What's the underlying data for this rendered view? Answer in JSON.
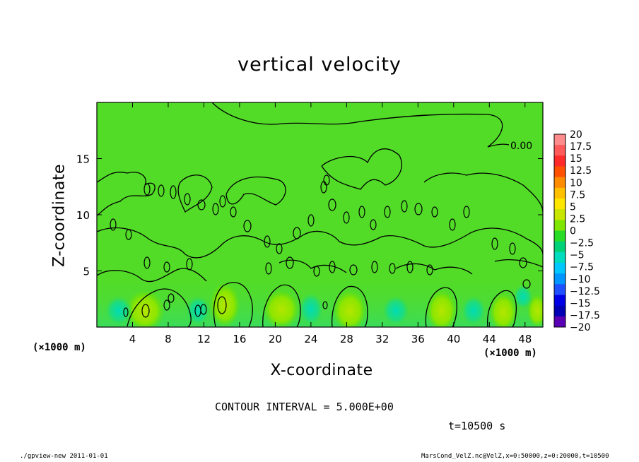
{
  "chart_data": {
    "type": "heatmap",
    "title": "vertical velocity",
    "xlabel": "X-coordinate",
    "ylabel": "Z-coordinate",
    "x_unit_left": "(×1000 m)",
    "x_unit_right": "(×1000 m)",
    "xlim": [
      0,
      50
    ],
    "ylim": [
      0,
      20
    ],
    "x_ticks": [
      "4",
      "8",
      "12",
      "16",
      "20",
      "24",
      "28",
      "32",
      "36",
      "40",
      "44",
      "48"
    ],
    "x_tick_values": [
      4,
      8,
      12,
      16,
      20,
      24,
      28,
      32,
      36,
      40,
      44,
      48
    ],
    "y_ticks": [
      "5",
      "10",
      "15"
    ],
    "y_tick_values": [
      5,
      10,
      15
    ],
    "contour_label": "0.00",
    "contour_interval_text": "CONTOUR INTERVAL = 5.000E+00",
    "time_text": "t=10500 s",
    "colorbar": {
      "labels": [
        "20",
        "17.5",
        "15",
        "12.5",
        "10",
        "7.5",
        "5",
        "2.5",
        "0",
        "−2.5",
        "−5",
        "−7.5",
        "−10",
        "−12.5",
        "−15",
        "−17.5",
        "−20"
      ],
      "colors": [
        "#ff8c8c",
        "#ff5a5a",
        "#ff2a2a",
        "#ff5000",
        "#ff8c00",
        "#ffc000",
        "#ffe600",
        "#c8e600",
        "#7fe600",
        "#28dc28",
        "#00d278",
        "#00dcbe",
        "#00c8ff",
        "#0096ff",
        "#1e50ff",
        "#0000e6",
        "#0000b4",
        "#5a00b4"
      ]
    }
  },
  "footer": {
    "left": "./gpview-new  2011-01-01",
    "right": "MarsCond_VelZ.nc@VelZ,x=0:50000,z=0:20000,t=10500"
  }
}
